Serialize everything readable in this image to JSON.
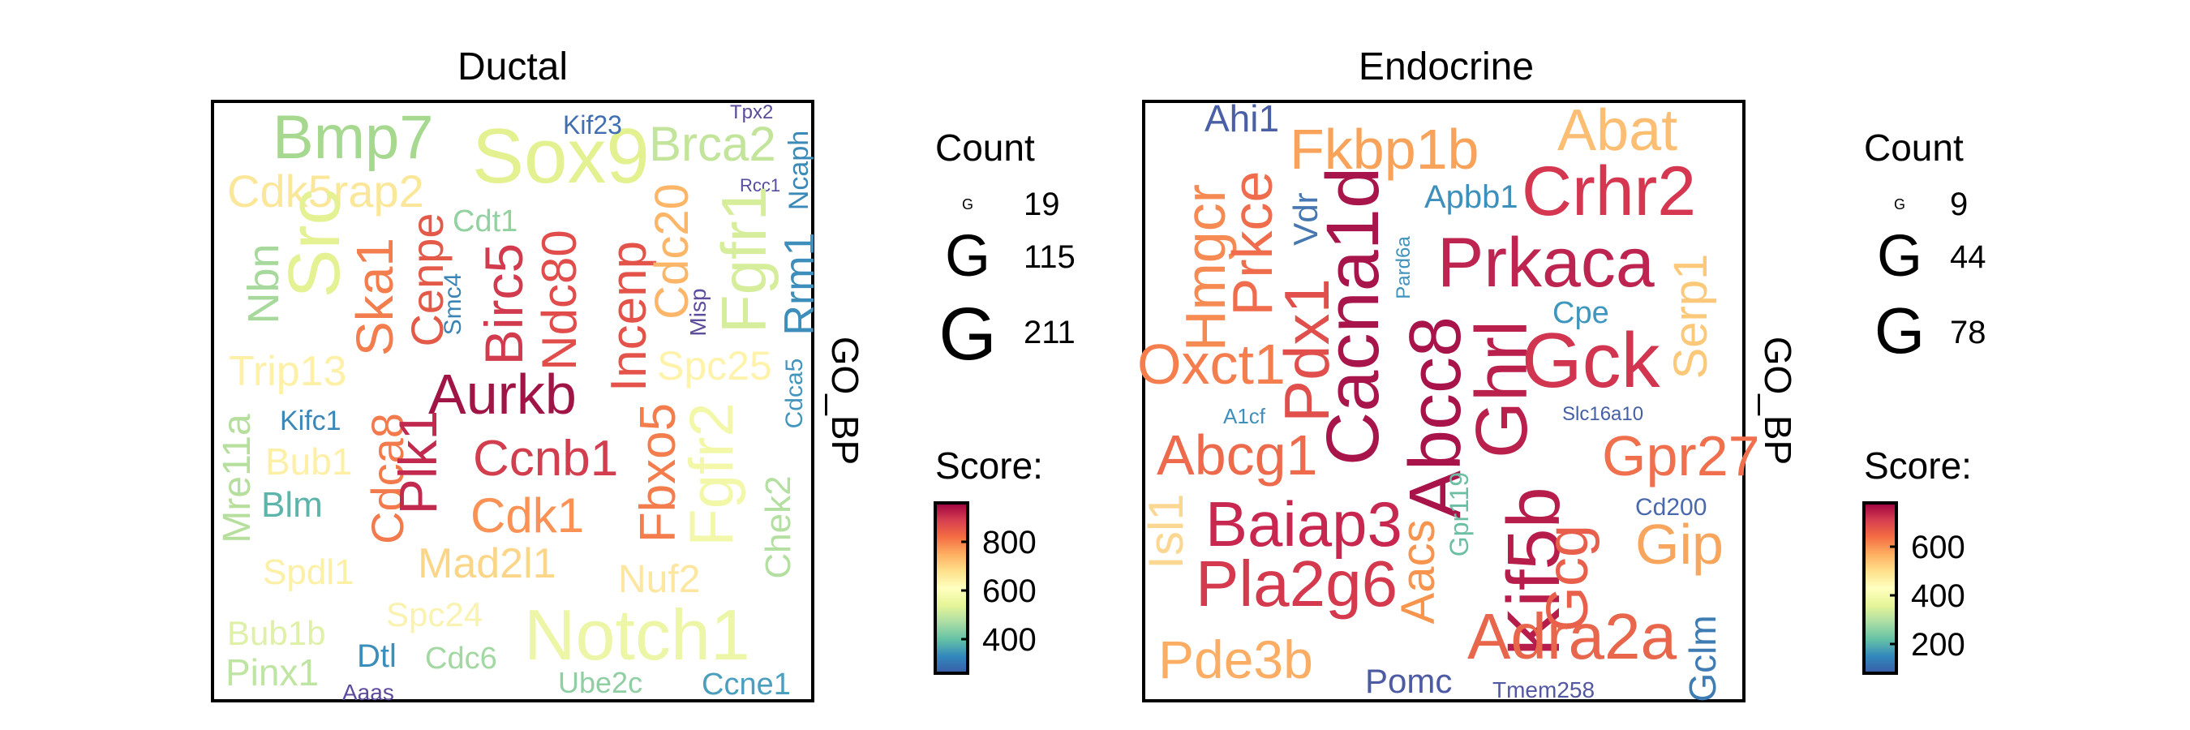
{
  "chart_data": [
    {
      "type": "wordcloud",
      "title": "Ductal",
      "side_label": "GO_BP",
      "legend": {
        "size_title": "Count",
        "size_glyph": "G",
        "size_values": [
          19,
          115,
          211
        ],
        "color_title": "Score:",
        "color_ticks": [
          400,
          600,
          800
        ],
        "color_range": [
          260,
          960
        ]
      },
      "words": [
        {
          "text": "Bmp7",
          "score": 480,
          "color": "#a6d98f"
        },
        {
          "text": "Sox9",
          "score": 520,
          "color": "#e4f191"
        },
        {
          "text": "Brca2",
          "score": 490,
          "color": "#c3e59b"
        },
        {
          "text": "Kif23",
          "score": 300,
          "color": "#3f6fb0"
        },
        {
          "text": "Tpx2",
          "score": 280,
          "color": "#5a4a9a"
        },
        {
          "text": "Ncaph",
          "score": 330,
          "color": "#3b8ab8"
        },
        {
          "text": "Rcc1",
          "score": 290,
          "color": "#534c9f"
        },
        {
          "text": "Cdk5rap2",
          "score": 560,
          "color": "#fbe79a"
        },
        {
          "text": "Cdt1",
          "score": 470,
          "color": "#93d1a0"
        },
        {
          "text": "Src",
          "score": 520,
          "color": "#e5f294"
        },
        {
          "text": "Nbn",
          "score": 470,
          "color": "#a7d89c"
        },
        {
          "text": "Ska1",
          "score": 680,
          "color": "#f47d4e"
        },
        {
          "text": "Cenpe",
          "score": 740,
          "color": "#e35a49"
        },
        {
          "text": "Smc4",
          "score": 330,
          "color": "#3a85b6"
        },
        {
          "text": "Birc5",
          "score": 800,
          "color": "#d23b4e"
        },
        {
          "text": "Ndc80",
          "score": 740,
          "color": "#e14d4a"
        },
        {
          "text": "Incenp",
          "score": 740,
          "color": "#e4534a"
        },
        {
          "text": "Cdc20",
          "score": 610,
          "color": "#fdb568"
        },
        {
          "text": "Misp",
          "score": 310,
          "color": "#5d4d9c"
        },
        {
          "text": "Fgfr1",
          "score": 500,
          "color": "#d6ee9b"
        },
        {
          "text": "Rrm1",
          "score": 350,
          "color": "#3d8ebb"
        },
        {
          "text": "Trip13",
          "score": 560,
          "color": "#fef0a6"
        },
        {
          "text": "Spc25",
          "score": 560,
          "color": "#fff3ac"
        },
        {
          "text": "Cdca5",
          "score": 350,
          "color": "#4495bd"
        },
        {
          "text": "Aurkb",
          "score": 920,
          "color": "#a01446"
        },
        {
          "text": "Mre11a",
          "score": 470,
          "color": "#b6df9d"
        },
        {
          "text": "Kifc1",
          "score": 340,
          "color": "#3b87b7"
        },
        {
          "text": "Bub1",
          "score": 560,
          "color": "#fdf0a6"
        },
        {
          "text": "Blm",
          "score": 410,
          "color": "#5cb4aa"
        },
        {
          "text": "Cdca8",
          "score": 680,
          "color": "#f37a4c"
        },
        {
          "text": "Plk1",
          "score": 850,
          "color": "#c12a4e"
        },
        {
          "text": "Ccnb1",
          "score": 800,
          "color": "#d23e4e"
        },
        {
          "text": "Fbxo5",
          "score": 680,
          "color": "#f47d4e"
        },
        {
          "text": "Fgfr2",
          "score": 540,
          "color": "#f2f8a8"
        },
        {
          "text": "Chek2",
          "score": 470,
          "color": "#b3dfa0"
        },
        {
          "text": "Cdk1",
          "score": 650,
          "color": "#f99254"
        },
        {
          "text": "Spdl1",
          "score": 560,
          "color": "#fcefa6"
        },
        {
          "text": "Mad2l1",
          "score": 590,
          "color": "#fbd688"
        },
        {
          "text": "Nuf2",
          "score": 560,
          "color": "#fde6a0"
        },
        {
          "text": "Bub1b",
          "score": 530,
          "color": "#dff0a8"
        },
        {
          "text": "Spc24",
          "score": 540,
          "color": "#f9f2b0"
        },
        {
          "text": "Notch1",
          "score": 530,
          "color": "#ecf6a6"
        },
        {
          "text": "Pinx1",
          "score": 480,
          "color": "#bfe5a2"
        },
        {
          "text": "Dtl",
          "score": 330,
          "color": "#3b8dba"
        },
        {
          "text": "Cdc6",
          "score": 470,
          "color": "#a4d8a2"
        },
        {
          "text": "Ube2c",
          "score": 450,
          "color": "#8fcfa3"
        },
        {
          "text": "Ccne1",
          "score": 360,
          "color": "#4a9fbe"
        },
        {
          "text": "Aaas",
          "score": 290,
          "color": "#5e4b9d"
        }
      ]
    },
    {
      "type": "wordcloud",
      "title": "Endocrine",
      "side_label": "GO_BP",
      "legend": {
        "size_title": "Count",
        "size_glyph": "G",
        "size_values": [
          9,
          44,
          78
        ],
        "color_title": "Score:",
        "color_ticks": [
          200,
          400,
          600
        ],
        "color_range": [
          80,
          780
        ]
      },
      "words": [
        {
          "text": "Ahi1",
          "score": 150,
          "color": "#4a5fa6"
        },
        {
          "text": "Fkbp1b",
          "score": 480,
          "color": "#f8a25a"
        },
        {
          "text": "Abat",
          "score": 450,
          "color": "#fbbe72"
        },
        {
          "text": "Hmgcr",
          "score": 520,
          "color": "#f58a53"
        },
        {
          "text": "Prkce",
          "score": 580,
          "color": "#ef6d4c"
        },
        {
          "text": "Vdr",
          "score": 160,
          "color": "#4677b0"
        },
        {
          "text": "Apbb1",
          "score": 200,
          "color": "#3f8fbb"
        },
        {
          "text": "Crhr2",
          "score": 680,
          "color": "#d4374f"
        },
        {
          "text": "Cacna1d",
          "score": 760,
          "color": "#a8154a"
        },
        {
          "text": "Pard6a",
          "score": 200,
          "color": "#3f92bc"
        },
        {
          "text": "Prkaca",
          "score": 720,
          "color": "#bd2550"
        },
        {
          "text": "Pdx1",
          "score": 640,
          "color": "#e04f4b"
        },
        {
          "text": "Abcc8",
          "score": 750,
          "color": "#a81349"
        },
        {
          "text": "Ghrl",
          "score": 720,
          "color": "#b9204c"
        },
        {
          "text": "Cpe",
          "score": 200,
          "color": "#3e96bd"
        },
        {
          "text": "Serp1",
          "score": 450,
          "color": "#fbc979"
        },
        {
          "text": "Oxct1",
          "score": 530,
          "color": "#f57e4f"
        },
        {
          "text": "Gck",
          "score": 680,
          "color": "#d2354f"
        },
        {
          "text": "A1cf",
          "score": 200,
          "color": "#3f91bb"
        },
        {
          "text": "Slc16a10",
          "score": 170,
          "color": "#445fa4"
        },
        {
          "text": "Abcg1",
          "score": 570,
          "color": "#ee6a4c"
        },
        {
          "text": "Kif5b",
          "score": 730,
          "color": "#b71d4b"
        },
        {
          "text": "Gpr27",
          "score": 550,
          "color": "#f06f4d"
        },
        {
          "text": "Gpr119",
          "score": 300,
          "color": "#6cbfa4"
        },
        {
          "text": "Isl1",
          "score": 420,
          "color": "#fcd792"
        },
        {
          "text": "Baiap3",
          "score": 690,
          "color": "#c8284f"
        },
        {
          "text": "Cd200",
          "score": 170,
          "color": "#4a69ac"
        },
        {
          "text": "Pla2g6",
          "score": 650,
          "color": "#d5394e"
        },
        {
          "text": "Aacs",
          "score": 500,
          "color": "#f7954f"
        },
        {
          "text": "Gcg",
          "score": 560,
          "color": "#e8604b"
        },
        {
          "text": "Gip",
          "score": 480,
          "color": "#f8a65d"
        },
        {
          "text": "Adra2a",
          "score": 580,
          "color": "#e8674c"
        },
        {
          "text": "Pde3b",
          "score": 480,
          "color": "#fbad64"
        },
        {
          "text": "Gclm",
          "score": 180,
          "color": "#3f7cb3"
        },
        {
          "text": "Pomc",
          "score": 150,
          "color": "#4d5aa4"
        },
        {
          "text": "Tmem258",
          "score": 140,
          "color": "#5457a2"
        }
      ]
    }
  ]
}
